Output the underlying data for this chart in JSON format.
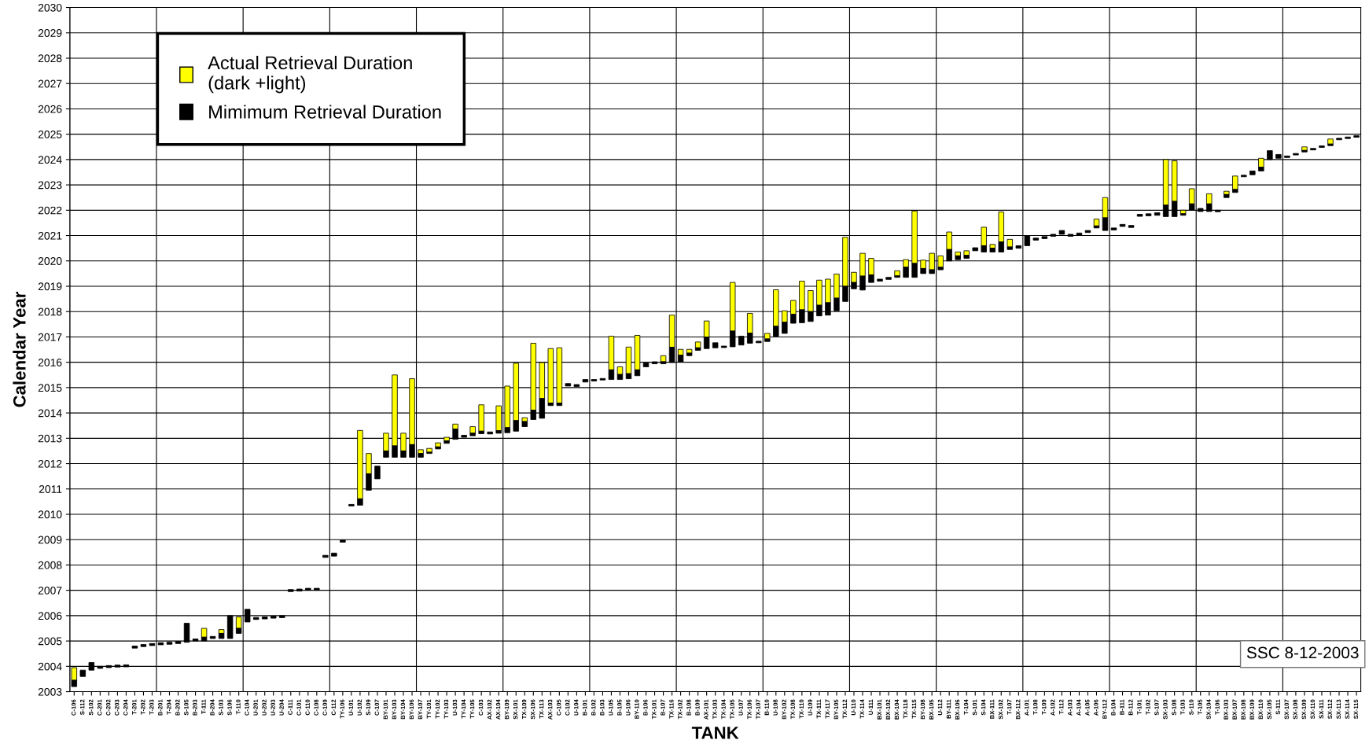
{
  "chart_data": {
    "type": "bar",
    "xlabel": "TANK",
    "ylabel": "Calendar Year",
    "ylim": [
      2003,
      2030
    ],
    "yticks": [
      2003,
      2004,
      2005,
      2006,
      2007,
      2008,
      2009,
      2010,
      2011,
      2012,
      2013,
      2014,
      2015,
      2016,
      2017,
      2018,
      2019,
      2020,
      2021,
      2022,
      2023,
      2024,
      2025,
      2026,
      2027,
      2028,
      2029,
      2030
    ],
    "grid": true,
    "legend": "top left",
    "annotations": [
      "SSC 8-12-2003"
    ],
    "categories": [
      "C-106",
      "S-112",
      "S-102",
      "C-201",
      "C-202",
      "C-203",
      "C-204",
      "T-201",
      "T-202",
      "T-203",
      "B-201",
      "T-204",
      "B-202",
      "S-105",
      "B-203",
      "T-111",
      "B-204",
      "S-103",
      "S-106",
      "T-110",
      "C-104",
      "U-201",
      "U-202",
      "U-203",
      "U-204",
      "C-111",
      "C-101",
      "C-110",
      "C-108",
      "C-109",
      "C-112",
      "TY-106",
      "U-101",
      "U-102",
      "S-109",
      "C-107",
      "BY-101",
      "BY-103",
      "BY-104",
      "BY-106",
      "BY-107",
      "TY-101",
      "TY-102",
      "TY-103",
      "U-103",
      "TY-104",
      "TY-105",
      "C-103",
      "AX-102",
      "AX-104",
      "BY-109",
      "SX-101",
      "TX-109",
      "SX-106",
      "TX-113",
      "AX-103",
      "C-105",
      "C-102",
      "U-104",
      "B-101",
      "B-102",
      "B-103",
      "U-105",
      "B-105",
      "U-106",
      "BY-110",
      "B-106",
      "TX-101",
      "B-107",
      "TX-116",
      "TX-102",
      "B-108",
      "B-109",
      "AX-101",
      "TX-103",
      "TX-104",
      "TX-105",
      "U-107",
      "TX-106",
      "TX-107",
      "B-110",
      "U-108",
      "BY-102",
      "TX-108",
      "TX-110",
      "U-109",
      "TX-111",
      "TX-117",
      "BY-105",
      "TX-112",
      "U-110",
      "TX-114",
      "U-111",
      "BX-101",
      "BX-102",
      "BX-104",
      "TX-118",
      "TX-115",
      "BY-108",
      "BX-105",
      "U-112",
      "BY-111",
      "BX-106",
      "T-104",
      "S-101",
      "S-104",
      "BX-111",
      "SX-102",
      "T-107",
      "BX-112",
      "A-101",
      "T-108",
      "T-109",
      "A-102",
      "T-112",
      "A-103",
      "A-104",
      "A-105",
      "A-106",
      "BY-112",
      "B-104",
      "B-111",
      "B-112",
      "T-101",
      "T-102",
      "S-107",
      "SX-103",
      "S-108",
      "T-103",
      "S-110",
      "T-105",
      "SX-104",
      "T-106",
      "BX-103",
      "BX-107",
      "BX-108",
      "BX-109",
      "BX-110",
      "SX-105",
      "S-111",
      "SX-107",
      "SX-108",
      "SX-109",
      "SX-110",
      "SX-111",
      "SX-112",
      "SX-113",
      "SX-114",
      "SX-115"
    ],
    "series": [
      {
        "name": "Mimimum Retrieval Duration",
        "color": "#000000",
        "base": [
          2003.2,
          2003.6,
          2003.85,
          2003.92,
          2003.95,
          2003.97,
          2003.98,
          2004.72,
          2004.78,
          2004.82,
          2004.85,
          2004.87,
          2004.9,
          2004.95,
          2005.0,
          2005.0,
          2005.1,
          2005.1,
          2005.1,
          2005.3,
          2005.75,
          2005.85,
          2005.87,
          2005.9,
          2005.92,
          2006.95,
          2006.97,
          2007.0,
          2007.0,
          2008.3,
          2008.35,
          2008.9,
          2010.33,
          2010.36,
          2010.95,
          2011.4,
          2012.25,
          2012.25,
          2012.25,
          2012.25,
          2012.25,
          2012.4,
          2012.58,
          2012.8,
          2012.96,
          2013.04,
          2013.1,
          2013.18,
          2013.17,
          2013.2,
          2013.22,
          2013.28,
          2013.46,
          2013.74,
          2013.79,
          2014.29,
          2014.29,
          2015.06,
          2015.04,
          2015.22,
          2015.26,
          2015.3,
          2015.32,
          2015.32,
          2015.35,
          2015.47,
          2015.82,
          2015.94,
          2015.94,
          2015.99,
          2016.01,
          2016.26,
          2016.47,
          2016.54,
          2016.57,
          2016.58,
          2016.61,
          2016.68,
          2016.75,
          2016.77,
          2016.82,
          2017.03,
          2017.14,
          2017.54,
          2017.56,
          2017.61,
          2017.83,
          2017.86,
          2018.03,
          2018.4,
          2018.9,
          2018.85,
          2019.15,
          2019.2,
          2019.27,
          2019.35,
          2019.35,
          2019.35,
          2019.5,
          2019.5,
          2019.65,
          2020.0,
          2020.05,
          2020.1,
          2020.4,
          2020.35,
          2020.35,
          2020.35,
          2020.45,
          2020.5,
          2020.6,
          2020.82,
          2020.88,
          2020.97,
          2021.05,
          2020.97,
          2021.02,
          2021.12,
          2021.3,
          2021.2,
          2021.22,
          2021.36,
          2021.32,
          2021.76,
          2021.78,
          2021.8,
          2021.75,
          2021.75,
          2021.8,
          2022.0,
          2021.95,
          2021.95,
          2021.94,
          2022.5,
          2022.7,
          2023.32,
          2023.4,
          2023.55,
          2024.0,
          2024.05,
          2024.08,
          2024.18,
          2024.3,
          2024.38,
          2024.48,
          2024.55,
          2024.78,
          2024.83,
          2024.88
        ],
        "values": [
          0.25,
          0.25,
          0.3,
          0.08,
          0.08,
          0.08,
          0.08,
          0.08,
          0.08,
          0.08,
          0.08,
          0.08,
          0.08,
          0.75,
          0.08,
          0.15,
          0.08,
          0.2,
          0.9,
          0.2,
          0.5,
          0.08,
          0.08,
          0.08,
          0.08,
          0.08,
          0.08,
          0.08,
          0.08,
          0.08,
          0.12,
          0.08,
          0.06,
          0.25,
          0.65,
          0.5,
          0.25,
          0.45,
          0.25,
          0.5,
          0.15,
          0.05,
          0.08,
          0.1,
          0.4,
          0.08,
          0.1,
          0.1,
          0.08,
          0.1,
          0.2,
          0.42,
          0.2,
          0.37,
          0.78,
          0.1,
          0.1,
          0.1,
          0.08,
          0.1,
          0.06,
          0.06,
          0.38,
          0.2,
          0.2,
          0.23,
          0.15,
          0.08,
          0.08,
          0.6,
          0.27,
          0.1,
          0.1,
          0.45,
          0.2,
          0.06,
          0.62,
          0.35,
          0.4,
          0.06,
          0.1,
          0.39,
          0.44,
          0.35,
          0.51,
          0.39,
          0.42,
          0.49,
          0.5,
          0.6,
          0.25,
          0.55,
          0.3,
          0.08,
          0.08,
          0.06,
          0.4,
          0.55,
          0.2,
          0.15,
          0.1,
          0.45,
          0.15,
          0.12,
          0.12,
          0.25,
          0.15,
          0.4,
          0.1,
          0.1,
          0.4,
          0.08,
          0.08,
          0.08,
          0.15,
          0.08,
          0.08,
          0.08,
          0.08,
          0.5,
          0.08,
          0.08,
          0.08,
          0.08,
          0.08,
          0.1,
          0.45,
          0.6,
          0.06,
          0.25,
          0.12,
          0.3,
          0.06,
          0.12,
          0.12,
          0.06,
          0.15,
          0.15,
          0.35,
          0.15,
          0.06,
          0.06,
          0.06,
          0.06,
          0.06,
          0.06,
          0.06,
          0.06,
          0.06
        ]
      },
      {
        "name": "Actual Retrieval Duration\n(dark +light)",
        "color": "#ffff00",
        "base": [
          2003.45,
          null,
          null,
          null,
          null,
          null,
          null,
          null,
          null,
          null,
          null,
          null,
          null,
          null,
          null,
          2005.15,
          null,
          2005.3,
          null,
          2005.5,
          null,
          null,
          null,
          null,
          null,
          null,
          null,
          null,
          null,
          null,
          null,
          null,
          null,
          2010.61,
          2011.6,
          null,
          2012.5,
          2012.7,
          2012.5,
          2012.75,
          2012.4,
          2012.45,
          2012.66,
          2012.9,
          2013.36,
          null,
          2013.2,
          2013.28,
          null,
          2013.3,
          2013.42,
          2013.7,
          2013.66,
          2014.11,
          2014.57,
          2014.39,
          2014.39,
          null,
          null,
          null,
          null,
          null,
          2015.7,
          2015.52,
          2015.55,
          2015.7,
          null,
          null,
          2016.02,
          2016.59,
          2016.28,
          2016.36,
          2016.57,
          2016.99,
          null,
          null,
          2017.23,
          null,
          2017.15,
          null,
          2016.92,
          2017.42,
          2017.58,
          2017.89,
          2018.07,
          2018.0,
          2018.25,
          2018.35,
          2018.53,
          2019.0,
          2019.15,
          2019.4,
          2019.45,
          null,
          null,
          2019.41,
          2019.75,
          2019.9,
          2019.7,
          2019.65,
          2019.75,
          2020.45,
          2020.2,
          2020.22,
          null,
          2020.6,
          2020.5,
          2020.75,
          2020.55,
          null,
          null,
          null,
          null,
          null,
          null,
          null,
          null,
          null,
          2021.38,
          2021.7,
          null,
          null,
          null,
          null,
          null,
          null,
          2022.2,
          2022.35,
          2021.86,
          2022.25,
          null,
          2022.25,
          null,
          2022.62,
          2022.82,
          null,
          null,
          2023.7,
          null,
          null,
          null,
          null,
          2024.36,
          null,
          null,
          2024.61,
          null,
          null,
          null
        ],
        "values": [
          0.5,
          null,
          null,
          null,
          null,
          null,
          null,
          null,
          null,
          null,
          null,
          null,
          null,
          null,
          null,
          0.35,
          null,
          0.15,
          null,
          0.45,
          null,
          null,
          null,
          null,
          null,
          null,
          null,
          null,
          null,
          null,
          null,
          null,
          null,
          2.7,
          0.8,
          null,
          0.7,
          2.8,
          0.7,
          2.6,
          0.15,
          0.15,
          0.16,
          0.14,
          0.2,
          null,
          0.26,
          1.04,
          null,
          0.98,
          1.64,
          2.26,
          0.15,
          2.64,
          1.42,
          2.15,
          2.18,
          null,
          null,
          null,
          null,
          null,
          1.33,
          0.3,
          1.05,
          1.36,
          null,
          null,
          0.24,
          1.27,
          0.23,
          0.15,
          0.23,
          0.64,
          null,
          null,
          1.92,
          null,
          0.78,
          null,
          0.22,
          1.44,
          0.45,
          0.55,
          1.13,
          0.83,
          0.99,
          0.93,
          0.95,
          1.93,
          0.4,
          0.9,
          0.65,
          null,
          null,
          0.2,
          0.3,
          2.07,
          0.33,
          0.65,
          0.45,
          0.69,
          0.15,
          0.18,
          null,
          0.73,
          0.15,
          1.18,
          0.3,
          null,
          null,
          null,
          null,
          null,
          null,
          null,
          null,
          null,
          0.27,
          0.8,
          null,
          null,
          null,
          null,
          null,
          null,
          1.8,
          1.6,
          0.14,
          0.6,
          null,
          0.4,
          null,
          0.13,
          0.53,
          null,
          null,
          0.35,
          null,
          null,
          null,
          null,
          0.14,
          null,
          null,
          0.2,
          null,
          null,
          null
        ]
      }
    ]
  }
}
